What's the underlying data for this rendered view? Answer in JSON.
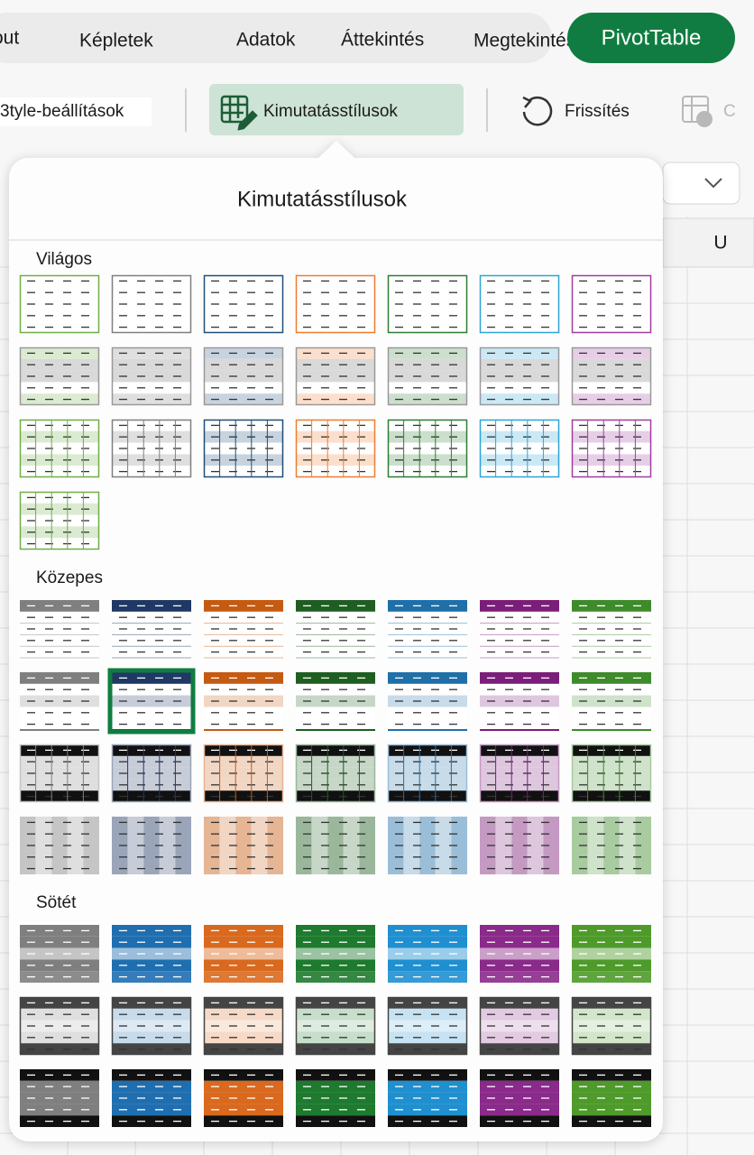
{
  "tabs": [
    "out",
    "Képletek",
    "Adatok",
    "Áttekintés",
    "Megtekintés"
  ],
  "active_tab": "PivotTable",
  "toolbar": {
    "style_options": "3tyle-beállítások",
    "pivot_styles": "Kimutatásstílusok",
    "refresh": "Frissítés",
    "cut_item": "C"
  },
  "sheet": {
    "column_header": "U"
  },
  "popup": {
    "title": "Kimutatásstílusok",
    "sections": [
      "Világos",
      "Közepes",
      "Sötét"
    ]
  }
}
